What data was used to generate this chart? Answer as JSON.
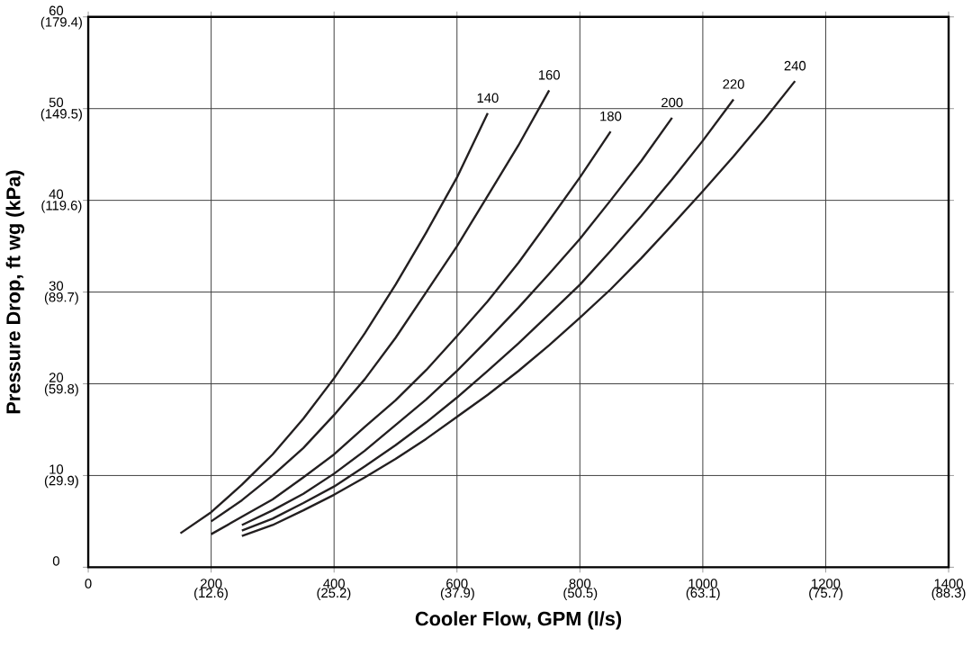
{
  "chart_data": {
    "type": "line",
    "xlabel": "Cooler Flow, GPM (l/s)",
    "ylabel": "Pressure Drop, ft wg (kPa)",
    "xlim": [
      0,
      1400
    ],
    "ylim": [
      0,
      60
    ],
    "xticks": [
      0,
      200,
      400,
      600,
      800,
      1000,
      1200,
      1400
    ],
    "yticks": [
      0,
      10,
      20,
      30,
      40,
      50,
      60
    ],
    "x2lim": [
      0,
      88.3
    ],
    "x2ticks": [
      {
        "value": 12.6,
        "label": "(12.6)"
      },
      {
        "value": 25.2,
        "label": "(25.2)"
      },
      {
        "value": 37.9,
        "label": "(37.9)"
      },
      {
        "value": 50.5,
        "label": "(50.5)"
      },
      {
        "value": 63.1,
        "label": "(63.1)"
      },
      {
        "value": 75.7,
        "label": "(75.7)"
      },
      {
        "value": 88.3,
        "label": "(88.3)"
      }
    ],
    "y2lim": [
      0,
      179.4
    ],
    "y2ticks": [
      {
        "value": 29.9,
        "label": "(29.9)"
      },
      {
        "value": 59.8,
        "label": "(59.8)"
      },
      {
        "value": 89.7,
        "label": "(89.7)"
      },
      {
        "value": 119.6,
        "label": "(119.6)"
      },
      {
        "value": 149.5,
        "label": "(149.5)"
      },
      {
        "value": 179.4,
        "label": "(179.4)"
      }
    ],
    "grid": true,
    "series": [
      {
        "name": "140",
        "color": "#231f20",
        "x": [
          150,
          200,
          250,
          300,
          350,
          400,
          450,
          500,
          550,
          600,
          650
        ],
        "values": [
          3.7,
          6.0,
          9.0,
          12.3,
          16.2,
          20.6,
          25.5,
          30.8,
          36.5,
          42.5,
          49.5
        ]
      },
      {
        "name": "160",
        "color": "#231f20",
        "x": [
          200,
          250,
          300,
          350,
          400,
          450,
          500,
          550,
          600,
          650,
          700,
          750
        ],
        "values": [
          5.0,
          7.3,
          10.0,
          13.0,
          16.6,
          20.5,
          25.0,
          30.0,
          35.0,
          40.5,
          46.0,
          52.0
        ]
      },
      {
        "name": "180",
        "color": "#231f20",
        "x": [
          200,
          250,
          300,
          350,
          400,
          450,
          500,
          550,
          600,
          650,
          700,
          750,
          800,
          850
        ],
        "values": [
          3.6,
          5.5,
          7.4,
          9.8,
          12.3,
          15.3,
          18.2,
          21.5,
          25.2,
          29.0,
          33.2,
          37.8,
          42.5,
          47.5
        ]
      },
      {
        "name": "200",
        "color": "#231f20",
        "x": [
          250,
          300,
          350,
          400,
          450,
          500,
          550,
          600,
          650,
          700,
          750,
          800,
          850,
          900,
          950
        ],
        "values": [
          4.6,
          6.2,
          8.0,
          10.2,
          12.7,
          15.5,
          18.3,
          21.4,
          24.8,
          28.3,
          32.0,
          35.8,
          40.0,
          44.3,
          49.0
        ]
      },
      {
        "name": "220",
        "color": "#231f20",
        "x": [
          250,
          300,
          350,
          400,
          450,
          500,
          550,
          600,
          650,
          700,
          750,
          800,
          850,
          900,
          950,
          1000,
          1050
        ],
        "values": [
          4.0,
          5.3,
          7.0,
          8.8,
          11.0,
          13.3,
          15.8,
          18.5,
          21.4,
          24.4,
          27.6,
          30.8,
          34.5,
          38.3,
          42.3,
          46.5,
          51.0
        ]
      },
      {
        "name": "240",
        "color": "#231f20",
        "x": [
          250,
          300,
          350,
          400,
          450,
          500,
          550,
          600,
          650,
          700,
          750,
          800,
          850,
          900,
          950,
          1000,
          1050,
          1100,
          1150
        ],
        "values": [
          3.4,
          4.6,
          6.2,
          7.9,
          9.8,
          11.8,
          14.0,
          16.4,
          18.8,
          21.4,
          24.2,
          27.2,
          30.3,
          33.7,
          37.3,
          41.0,
          44.8,
          48.8,
          53.0
        ]
      }
    ]
  }
}
